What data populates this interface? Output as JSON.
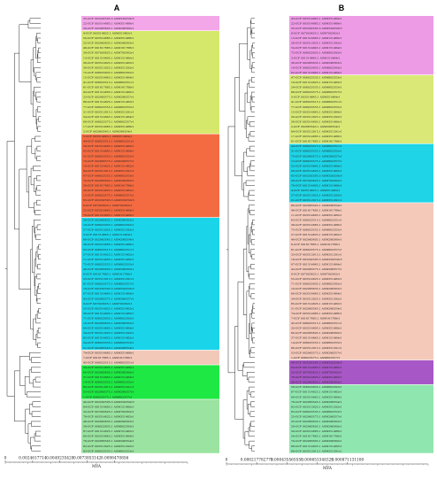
{
  "panels": [
    {
      "label": "A",
      "axis": {
        "ticks": [
          "0",
          "0.0024617714",
          "0.0049235428",
          "0.0073853142",
          "0.0098470856"
        ],
        "unit": "MYA"
      },
      "clades": [
        {
          "color": "#f3a6e8",
          "count": 3
        },
        {
          "color": "#d6e86c",
          "count": 21
        },
        {
          "color": "#f46b41",
          "count": 17
        },
        {
          "color": "#1ad5ea",
          "count": 27
        },
        {
          "color": "#f2c8b8",
          "count": 3
        },
        {
          "color": "#1ee843",
          "count": 7
        },
        {
          "color": "#9ae3a0",
          "count": 11
        }
      ],
      "leaves": [
        "35-GCF 003292595.3 ASM329259v3",
        "22-GCF 003514885.1 ASM351488v1",
        "29-GCF 002983605.1 ASM298360v1",
        "4-GCF 003514825.1 ASM351482v1",
        "50-GCF 003514885.1 ASM351488v1",
        "25-GCF 002983635.1 ASM298363v1",
        "46-GCF 001617885.1 ASM161788v1",
        "39-GCF 007003625.1 ASM700362v1",
        "13-GCF 001514805.1 ASM151480v1",
        "26-GCF 003514825.1 ASM351482v1",
        "30-GCF 003512925.1 ASM351292v1",
        "72-GCF 008023935.1 ASM802393v1",
        "15-GCF 003514845.1 ASM351484v1",
        "41-GCF 008023515.1 ASM802351v1",
        "61-GCF 001617885.1 ASM161788v1",
        "43-GCF 001514805.1 ASM151480v1",
        "23-GCF 002983575.1 ASM298357v1",
        "88-GCF 001514825.1 ASM151482v1",
        "77-GCF 008023555.1 ASM802355v1",
        "21-GCF 003512915.1 ASM351291v1",
        "54-GCF 001514845.1 ASM151484v1",
        "68-GCF 008023575.1 ASM802357v1",
        "17-GCF 003514885.1 ASM351488v1",
        "2-GCF 002983545.1 ASM298354v1",
        "5-GCF 003514845.1 ASM351484v1",
        "44-GCF 008023515.1 ASM802351v1",
        "56-GCF 003514805.1 ASM351480v1",
        "62-GCF 001514845.1 ASM151484v1",
        "31-GCF 008023555.1 ASM802355v1",
        "73-GCF 002983575.1 ASM298357v1",
        "10-GCF 001514825.1 ASM151482v1",
        "84-GCF 003512915.1 ASM351291v1",
        "47-GCF 008023535.1 ASM802353v1",
        "70-GCF 002983605.1 ASM298360v1",
        "59-GCF 001617885.1 ASM161788v1",
        "26-GCF 003514825.1 ASM351482v1",
        "12-GCF 008023575.1 ASM802357v1",
        "65-GCF 003292595.3 ASM329259v3",
        "8-GCF 007003625.1 ASM700362v1",
        "52-GCF 003514845.1 ASM351484v1",
        "79-GCF 001514805.1 ASM151480v1",
        "36-GCF 002983635.1 ASM298363v1",
        "19-GCF 008023935.1 ASM802393v1",
        "57-GCF 003512925.1 ASM351292v1",
        "3-GCF 001514845.1 ASM151484v1",
        "86-GCF 002983545.1 ASM298354v1",
        "38-GCF 003514885.1 ASM351488v1",
        "63-GCF 008023515.1 ASM802351v1",
        "27-GCF 001514825.1 ASM151482v1",
        "11-GCF 003514805.1 ASM351480v1",
        "75-GCF 008023555.1 ASM802355v1",
        "49-GCF 002983605.1 ASM298360v1",
        "6-GCF 001617885.1 ASM161788v1",
        "33-GCF 003512915.1 ASM351291v1",
        "81-GCF 008023575.1 ASM802357v1",
        "18-GCF 003292595.3 ASM329259v3",
        "67-GCF 001514845.1 ASM151484v1",
        "42-GCF 002983575.1 ASM298357v1",
        "9-GCF 007003625.1 ASM700362v1",
        "55-GCF 003514825.1 ASM351482v1",
        "28-GCF 001514805.1 ASM151480v1",
        "71-GCF 008023935.1 ASM802393v1",
        "16-GCF 002983635.1 ASM298363v1",
        "60-GCF 003514845.1 ASM351484v1",
        "34-GCF 003512925.1 ASM351292v1",
        "85-GCF 001514825.1 ASM151482v1",
        "24-GCF 008023535.1 ASM802353v1",
        "51-GCF 002983545.1 ASM298354v1",
        "74-GCF 003514885.1 ASM351488v1",
        "7-GCF 001617885.1 ASM161788v1",
        "45-GCF 008023515.1 ASM802351v1",
        "20-GCF 003514805.1 ASM351480v1",
        "66-GCF 002983605.1 ASM298360v1",
        "37-GCF 001514845.1 ASM151484v1",
        "14-GCF 008023555.1 ASM802355v1",
        "80-GCF 003512915.1 ASM351291v1",
        "53-GCF 002983575.1 ASM298357v1",
        "1-GCF 008023575.1 ASM802357v1",
        "40-GCF 003292595.3 ASM329259v3",
        "64-GCF 001514805.1 ASM151480v1",
        "32-GCF 007003625.1 ASM700362v1",
        "78-GCF 003514825.1 ASM351482v1",
        "48-GCF 002983635.1 ASM298363v1",
        "58-GCF 008023935.1 ASM802393v1",
        "87-GCF 001514825.1 ASM151482v1",
        "69-GCF 003514845.1 ASM351484v1",
        "76-GCF 002983545.1 ASM298354v1",
        "82-GCF 003512925.1 ASM351292v1",
        "83-GCF 008023535.1 ASM802353v1"
      ]
    },
    {
      "label": "B",
      "axis": {
        "ticks": [
          "0",
          "0.000217782775",
          "0.000435565550",
          "0.000653348325",
          "0.000871131100"
        ],
        "unit": "MYA"
      },
      "clades": [
        {
          "color": "#ee9be6",
          "count": 12
        },
        {
          "color": "#d9e876",
          "count": 14
        },
        {
          "color": "#1ed4e6",
          "count": 12
        },
        {
          "color": "#f4c9ba",
          "count": 32
        },
        {
          "color": "#a857c6",
          "count": 5
        },
        {
          "color": "#8fe6ae",
          "count": 14
        }
      ],
      "leaves": [
        "43-GCF 003514845.1 ASM351484v1",
        "22-GCF 003514885.1 ASM351488v1",
        "35-GCF 003292595.3 ASM329259v3",
        "8-GCF 007003625.1 ASM700362v1",
        "13-GCF 001514805.1 ASM151480v1",
        "28-GCF 003512925.1 ASM351292v1",
        "54-GCF 001514845.1 ASM151484v1",
        "72-GCF 008023935.1 ASM802393v1",
        "3-GCF 001514845.1 ASM151484v1",
        "36-GCF 002983635.1 ASM298363v1",
        "19-GCF 008023935.1 ASM802393v1",
        "62-GCF 001514845.1 ASM151484v1",
        "47-GCF 008023535.1 ASM802353v1",
        "10-GCF 001514825.1 ASM151482v1",
        "24-GCF 008023535.1 ASM802353v1",
        "68-GCF 008023575.1 ASM802357v1",
        "5-GCF 003514845.1 ASM351484v1",
        "41-GCF 008023515.1 ASM802351v1",
        "77-GCF 008023555.1 ASM802355v1",
        "15-GCF 003514845.1 ASM351484v1",
        "30-GCF 003512925.1 ASM351292v1",
        "56-GCF 003514805.1 ASM351480v1",
        "2-GCF 002983545.1 ASM298354v1",
        "84-GCF 003512915.1 ASM351291v1",
        "17-GCF 003514885.1 ASM351488v1",
        "61-GCF 001617885.1 ASM161788v1",
        "44-GCF 008023515.1 ASM802351v1",
        "31-GCF 008023555.1 ASM802355v1",
        "73-GCF 002983575.1 ASM298357v1",
        "12-GCF 008023575.1 ASM802357v1",
        "52-GCF 003514845.1 ASM351484v1",
        "26-GCF 003514825.1 ASM351482v1",
        "65-GCF 003292595.3 ASM329259v3",
        "39-GCF 007003625.1 ASM700362v1",
        "79-GCF 001514805.1 ASM151480v1",
        "4-GCF 003514825.1 ASM351482v1",
        "57-GCF 003512925.1 ASM351292v1",
        "21-GCF 003512915.1 ASM351291v1",
        "86-GCF 002983545.1 ASM298354v1",
        "46-GCF 001617885.1 ASM161788v1",
        "11-GCF 003514805.1 ASM351480v1",
        "63-GCF 008023515.1 ASM802351v1",
        "38-GCF 003514885.1 ASM351488v1",
        "75-GCF 008023555.1 ASM802355v1",
        "27-GCF 001514825.1 ASM151482v1",
        "49-GCF 002983605.1 ASM298360v1",
        "6-GCF 001617885.1 ASM161788v1",
        "81-GCF 008023575.1 ASM802357v1",
        "33-GCF 003512915.1 ASM351291v1",
        "18-GCF 003292595.3 ASM329259v3",
        "67-GCF 001514845.1 ASM151484v1",
        "42-GCF 002983575.1 ASM298357v1",
        "9-GCF 007003625.1 ASM700362v1",
        "55-GCF 003514825.1 ASM351482v1",
        "71-GCF 008023935.1 ASM802393v1",
        "16-GCF 002983635.1 ASM298363v1",
        "60-GCF 003514845.1 ASM351484v1",
        "34-GCF 003512925.1 ASM351292v1",
        "85-GCF 001514825.1 ASM151482v1",
        "51-GCF 002983545.1 ASM298354v1",
        "74-GCF 003514885.1 ASM351488v1",
        "7-GCF 001617885.1 ASM161788v1",
        "45-GCF 008023515.1 ASM802351v1",
        "20-GCF 003514805.1 ASM351480v1",
        "66-GCF 002983605.1 ASM298360v1",
        "37-GCF 001514845.1 ASM151484v1",
        "14-GCF 008023555.1 ASM802355v1",
        "80-GCF 003512915.1 ASM351291v1",
        "53-GCF 002983575.1 ASM298357v1",
        "1-GCF 008023575.1 ASM802357v1",
        "40-GCF 003292595.3 ASM329259v3",
        "64-GCF 001514805.1 ASM151480v1",
        "32-GCF 007003625.1 ASM700362v1",
        "78-GCF 003514825.1 ASM351482v1",
        "48-GCF 002983635.1 ASM298363v1",
        "58-GCF 008023935.1 ASM802393v1",
        "87-GCF 001514825.1 ASM151482v1",
        "69-GCF 003514845.1 ASM351484v1",
        "76-GCF 002983545.1 ASM298354v1",
        "82-GCF 003512925.1 ASM351292v1",
        "83-GCF 008023535.1 ASM802353v1",
        "23-GCF 002983575.1 ASM298357v1",
        "25-GCF 002983635.1 ASM298363v1",
        "29-GCF 002983605.1 ASM298360v1",
        "50-GCF 003514885.1 ASM351488v1",
        "59-GCF 001617885.1 ASM161788v1",
        "70-GCF 002983605.1 ASM298360v1",
        "88-GCF 001514825.1 ASM151482v1",
        "89-GCF 003512915.1 ASM351291v1"
      ]
    }
  ]
}
